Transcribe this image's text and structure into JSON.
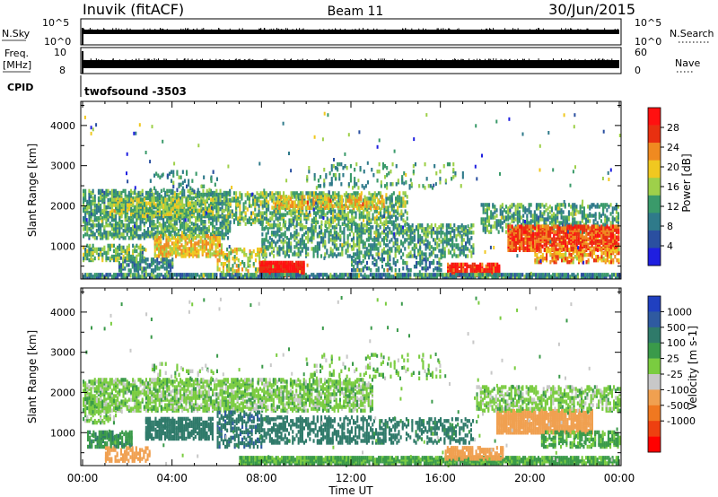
{
  "header": {
    "station": "Inuvik (fitACF)",
    "beam": "Beam 11",
    "date": "30/Jun/2015"
  },
  "top_panels": {
    "nsky_label": "N.Sky",
    "nsky_tick_top": "10^5",
    "nsky_tick_bottom": "10^0",
    "nsearch_tick_top": "10^5",
    "nsearch_tick_bottom": "10^0",
    "nsearch_label": "N.Search",
    "freq_label_1": "Freq.",
    "freq_label_2": "[MHz]",
    "freq_tick_top": "10",
    "freq_tick_bottom": "8",
    "nave_tick_top": "60",
    "nave_tick_bottom": "0",
    "nave_label": "Nave",
    "cpid_label": "CPID",
    "cpid_value": "twofsound -3503"
  },
  "chart_data": [
    {
      "type": "heatmap",
      "title": "",
      "xlabel": "",
      "ylabel": "Slant Range [km]",
      "x_ticks": [
        "00:00",
        "04:00",
        "08:00",
        "12:00",
        "16:00",
        "20:00",
        "00:00"
      ],
      "y_ticks": [
        1000,
        2000,
        3000,
        4000
      ],
      "xlim_hours": [
        0,
        24
      ],
      "ylim_km": [
        180,
        4600
      ],
      "colorbar": {
        "label": "Power [dB]",
        "ticks": [
          4,
          8,
          12,
          16,
          20,
          24,
          28
        ],
        "range": [
          0,
          32
        ],
        "colors": [
          "#1f1fe0",
          "#2a4fa0",
          "#2f7a8a",
          "#3a9a6a",
          "#9ed04a",
          "#f0c820",
          "#f08a20",
          "#e83010",
          "#ff1010"
        ]
      },
      "regions": [
        {
          "t": [
            0.0,
            6.6
          ],
          "r": [
            1150,
            2350
          ],
          "value": 12,
          "density": 0.55
        },
        {
          "t": [
            1.2,
            5.8
          ],
          "r": [
            1700,
            2150
          ],
          "value": 16,
          "density": 0.5
        },
        {
          "t": [
            3.2,
            6.2
          ],
          "r": [
            700,
            1200
          ],
          "value": 20,
          "density": 0.55
        },
        {
          "t": [
            0.0,
            2.8
          ],
          "r": [
            600,
            1000
          ],
          "value": 14,
          "density": 0.5
        },
        {
          "t": [
            1.6,
            4.0
          ],
          "r": [
            300,
            650
          ],
          "value": 10,
          "density": 0.4
        },
        {
          "t": [
            6.4,
            14.5
          ],
          "r": [
            1500,
            2300
          ],
          "value": 14,
          "density": 0.45
        },
        {
          "t": [
            8.5,
            13.5
          ],
          "r": [
            1900,
            2200
          ],
          "value": 20,
          "density": 0.4
        },
        {
          "t": [
            8.0,
            17.5
          ],
          "r": [
            700,
            1500
          ],
          "value": 12,
          "density": 0.4
        },
        {
          "t": [
            12.0,
            16.0
          ],
          "r": [
            350,
            700
          ],
          "value": 10,
          "density": 0.3
        },
        {
          "t": [
            6.0,
            8.2
          ],
          "r": [
            280,
            900
          ],
          "value": 18,
          "density": 0.35
        },
        {
          "t": [
            7.9,
            9.9
          ],
          "r": [
            220,
            560
          ],
          "value": 30,
          "density": 0.95
        },
        {
          "t": [
            16.3,
            18.6
          ],
          "r": [
            220,
            520
          ],
          "value": 28,
          "density": 0.8
        },
        {
          "t": [
            17.8,
            24.0
          ],
          "r": [
            1300,
            2000
          ],
          "value": 12,
          "density": 0.4
        },
        {
          "t": [
            19.0,
            24.0
          ],
          "r": [
            850,
            1450
          ],
          "value": 26,
          "density": 0.75
        },
        {
          "t": [
            20.2,
            24.0
          ],
          "r": [
            550,
            900
          ],
          "value": 22,
          "density": 0.45
        },
        {
          "t": [
            10.0,
            17.0
          ],
          "r": [
            2400,
            3000
          ],
          "value": 12,
          "density": 0.12
        },
        {
          "t": [
            3.0,
            6.0
          ],
          "r": [
            2300,
            2800
          ],
          "value": 10,
          "density": 0.12
        },
        {
          "t": [
            0.0,
            24.0
          ],
          "r": [
            190,
            260
          ],
          "value": 10,
          "density": 0.85
        }
      ]
    },
    {
      "type": "heatmap",
      "title": "",
      "xlabel": "Time UT",
      "ylabel": "Slant Range [km]",
      "x_ticks": [
        "00:00",
        "04:00",
        "08:00",
        "12:00",
        "16:00",
        "20:00",
        "00:00"
      ],
      "y_ticks": [
        1000,
        2000,
        3000,
        4000
      ],
      "xlim_hours": [
        0,
        24
      ],
      "ylim_km": [
        180,
        4600
      ],
      "colorbar": {
        "label": "Velocity [m s-1]",
        "ticks": [
          1000,
          500,
          100,
          25,
          -25,
          -100,
          -500,
          -1000
        ],
        "colors": [
          "#2040c0",
          "#2f5aa0",
          "#2f7a6a",
          "#3a9a4a",
          "#7acc40",
          "#c8c8c8",
          "#f0a050",
          "#f07820",
          "#ee4010",
          "#ff0000"
        ]
      },
      "regions": [
        {
          "t": [
            0.0,
            13.0
          ],
          "r": [
            1500,
            2300
          ],
          "value": 0,
          "density": 0.55
        },
        {
          "t": [
            0.0,
            1.5
          ],
          "r": [
            1200,
            1800
          ],
          "value": 0,
          "density": 0.4
        },
        {
          "t": [
            2.8,
            5.8
          ],
          "r": [
            800,
            1300
          ],
          "value": 300,
          "density": 0.65
        },
        {
          "t": [
            0.2,
            2.2
          ],
          "r": [
            600,
            1000
          ],
          "value": 80,
          "density": 0.55
        },
        {
          "t": [
            1.0,
            3.0
          ],
          "r": [
            250,
            600
          ],
          "value": -300,
          "density": 0.45
        },
        {
          "t": [
            6.0,
            8.0
          ],
          "r": [
            600,
            1500
          ],
          "value": 400,
          "density": 0.35
        },
        {
          "t": [
            8.0,
            13.0
          ],
          "r": [
            700,
            1350
          ],
          "value": 200,
          "density": 0.35
        },
        {
          "t": [
            13.0,
            17.5
          ],
          "r": [
            700,
            1300
          ],
          "value": 150,
          "density": 0.35
        },
        {
          "t": [
            7.0,
            24.0
          ],
          "r": [
            190,
            330
          ],
          "value": 40,
          "density": 0.85
        },
        {
          "t": [
            16.2,
            18.8
          ],
          "r": [
            300,
            600
          ],
          "value": -300,
          "density": 0.65
        },
        {
          "t": [
            18.5,
            22.8
          ],
          "r": [
            950,
            1500
          ],
          "value": -300,
          "density": 0.8
        },
        {
          "t": [
            17.6,
            24.0
          ],
          "r": [
            1500,
            2100
          ],
          "value": 0,
          "density": 0.45
        },
        {
          "t": [
            20.5,
            24.0
          ],
          "r": [
            600,
            1000
          ],
          "value": 40,
          "density": 0.5
        },
        {
          "t": [
            10.0,
            16.0
          ],
          "r": [
            2300,
            2900
          ],
          "value": 0,
          "density": 0.1
        },
        {
          "t": [
            3.0,
            6.0
          ],
          "r": [
            2300,
            2700
          ],
          "value": 0,
          "density": 0.12
        }
      ]
    }
  ]
}
